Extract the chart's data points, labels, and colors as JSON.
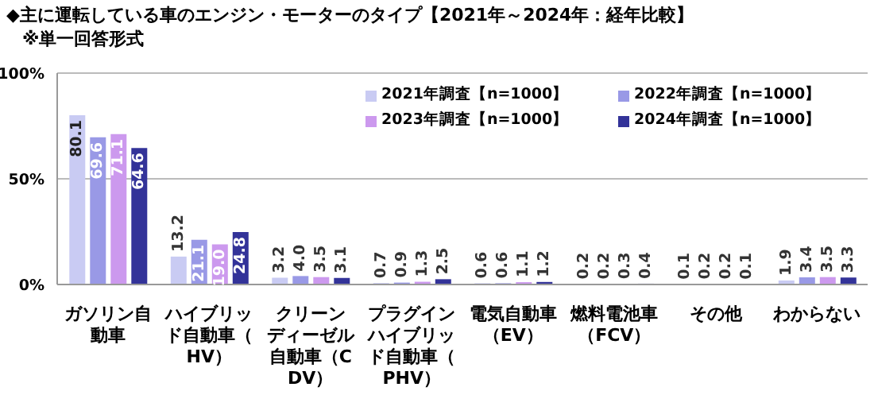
{
  "chart_data": {
    "type": "bar",
    "title": "◆主に運転している車のエンジン・モーターのタイプ【2021年～2024年：経年比較】",
    "subtitle": "※単一回答形式",
    "categories": [
      "ガソリン自動車",
      "ハイブリッド自動車（HV）",
      "クリーンディーゼル自動車（CDV）",
      "プラグインハイブリッド自動車（PHV）",
      "電気自動車（EV）",
      "燃料電池車（FCV）",
      "その他",
      "わからない"
    ],
    "series": [
      {
        "name": "2021年調査【n=1000】",
        "color": "#c9cbf3",
        "values": [
          80.1,
          13.2,
          3.2,
          0.7,
          0.6,
          0.2,
          0.1,
          1.9
        ],
        "value_labels": [
          "80.1",
          "13.2",
          "3.2",
          "0.7",
          "0.6",
          "0.2",
          "0.1",
          "1.9"
        ]
      },
      {
        "name": "2022年調査【n=1000】",
        "color": "#9999e6",
        "values": [
          69.6,
          21.1,
          4.0,
          0.9,
          0.6,
          0.2,
          0.2,
          3.4
        ],
        "value_labels": [
          "69.6",
          "21.1",
          "4.0",
          "0.9",
          "0.6",
          "0.2",
          "0.2",
          "3.4"
        ]
      },
      {
        "name": "2023年調査【n=1000】",
        "color": "#cc99ee",
        "values": [
          71.1,
          19.0,
          3.5,
          1.3,
          1.1,
          0.3,
          0.2,
          3.5
        ],
        "value_labels": [
          "71.1",
          "19.0",
          "3.5",
          "1.3",
          "1.1",
          "0.3",
          "0.2",
          "3.5"
        ]
      },
      {
        "name": "2024年調査【n=1000】",
        "color": "#333399",
        "values": [
          64.6,
          24.8,
          3.1,
          2.5,
          1.2,
          0.4,
          0.1,
          3.3
        ],
        "value_labels": [
          "64.6",
          "24.8",
          "3.1",
          "2.5",
          "1.2",
          "0.4",
          "0.1",
          "3.3"
        ]
      }
    ],
    "ylim": [
      0,
      100
    ],
    "yticks": [
      {
        "value": 0,
        "label": "0%"
      },
      {
        "value": 50,
        "label": "50%"
      },
      {
        "value": 100,
        "label": "100%"
      }
    ],
    "grid": "y",
    "legend": "top right"
  }
}
